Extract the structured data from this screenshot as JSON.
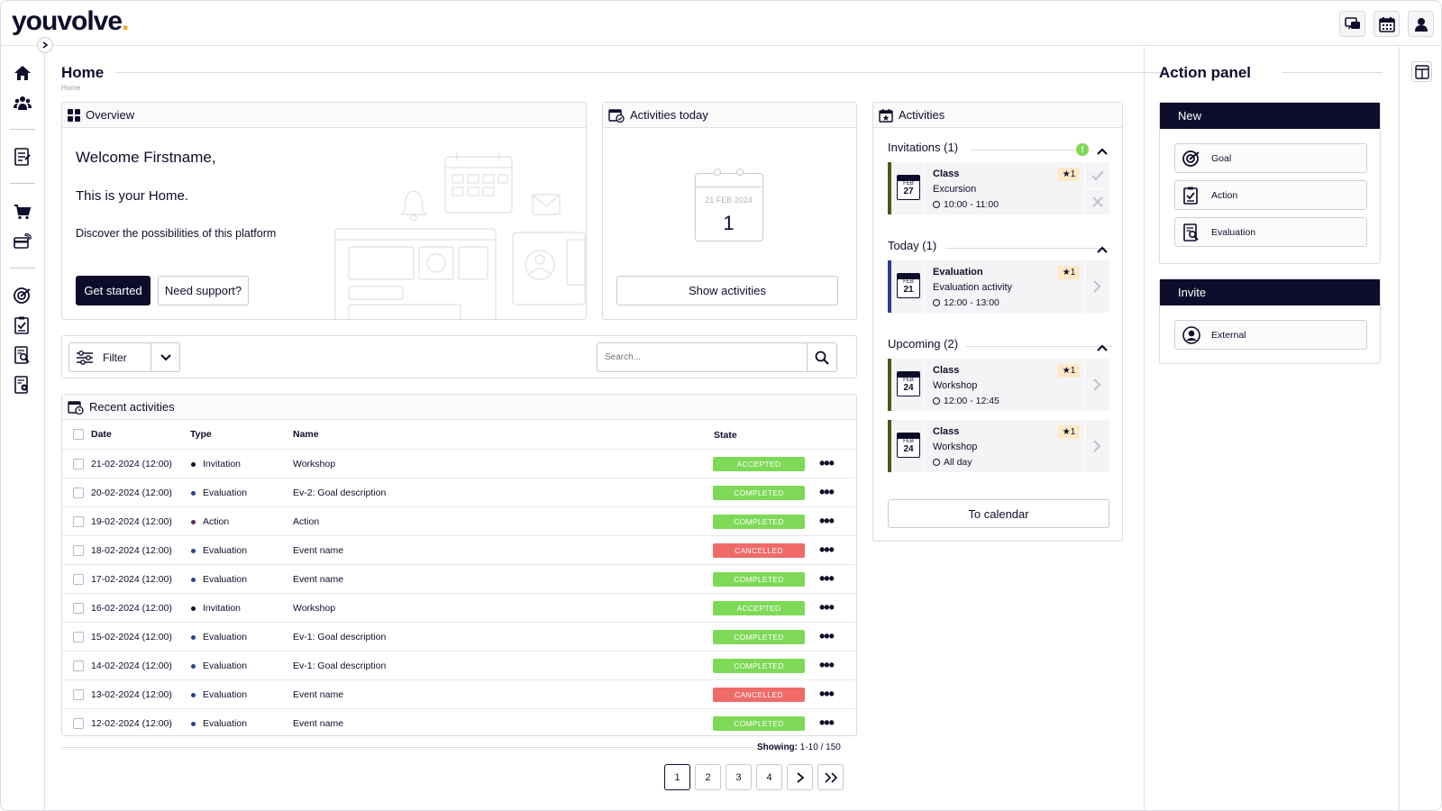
{
  "brand": {
    "logo_text": "youvolve",
    "logo_dot": ".",
    "accent": "#f5a623",
    "navy": "#0d0d2b"
  },
  "page": {
    "title": "Home",
    "breadcrumb": "Home"
  },
  "overview": {
    "title": "Overview",
    "welcome": "Welcome Firstname,",
    "subtitle": "This is your Home.",
    "description": "Discover the possibilities of this platform",
    "primary_button": "Get started",
    "secondary_button": "Need support?"
  },
  "activities_today": {
    "title": "Activities today",
    "calendar_date": "21 FEB 2024",
    "count": "1",
    "button": "Show activities"
  },
  "filter": {
    "label": "Filter",
    "search_placeholder": "Search..."
  },
  "recent": {
    "title": "Recent activities",
    "columns": {
      "date": "Date",
      "type": "Type",
      "name": "Name",
      "state": "State"
    },
    "rows": [
      {
        "date": "21-02-2024 (12:00)",
        "type": "Invitation",
        "name": "Workshop",
        "state": "ACCEPTED",
        "color": "#7ed957",
        "dot": "#0d0d2b"
      },
      {
        "date": "20-02-2024 (12:00)",
        "type": "Evaluation",
        "name": "Ev-2: Goal description",
        "state": "COMPLETED",
        "color": "#7ed957",
        "dot": "#2a3f8f"
      },
      {
        "date": "19-02-2024 (12:00)",
        "type": "Action",
        "name": "Action",
        "state": "COMPLETED",
        "color": "#7ed957",
        "dot": "#5a2a5f"
      },
      {
        "date": "18-02-2024 (12:00)",
        "type": "Evaluation",
        "name": "Event name",
        "state": "CANCELLED",
        "color": "#f06a6a",
        "dot": "#2a3f8f"
      },
      {
        "date": "17-02-2024 (12:00)",
        "type": "Evaluation",
        "name": "Event name",
        "state": "COMPLETED",
        "color": "#7ed957",
        "dot": "#2a3f8f"
      },
      {
        "date": "16-02-2024 (12:00)",
        "type": "Invitation",
        "name": "Workshop",
        "state": "ACCEPTED",
        "color": "#7ed957",
        "dot": "#0d0d2b"
      },
      {
        "date": "15-02-2024 (12:00)",
        "type": "Evaluation",
        "name": "Ev-1: Goal description",
        "state": "COMPLETED",
        "color": "#7ed957",
        "dot": "#2a3f8f"
      },
      {
        "date": "14-02-2024 (12:00)",
        "type": "Evaluation",
        "name": "Ev-1: Goal description",
        "state": "COMPLETED",
        "color": "#7ed957",
        "dot": "#2a3f8f"
      },
      {
        "date": "13-02-2024 (12:00)",
        "type": "Evaluation",
        "name": "Event name",
        "state": "CANCELLED",
        "color": "#f06a6a",
        "dot": "#2a3f8f"
      },
      {
        "date": "12-02-2024 (12:00)",
        "type": "Evaluation",
        "name": "Event name",
        "state": "COMPLETED",
        "color": "#7ed957",
        "dot": "#2a3f8f"
      }
    ],
    "showing_label": "Showing:",
    "showing_value": "1-10 / 150",
    "pages": [
      "1",
      "2",
      "3",
      "4"
    ]
  },
  "activities": {
    "title": "Activities",
    "invitations": {
      "label": "Invitations (1)",
      "items": [
        {
          "title": "Class",
          "subtitle": "Excursion",
          "time": "10:00 - 11:00",
          "month": "FEB",
          "day": "27",
          "stars": "1",
          "bar": "#4a5a1a"
        }
      ]
    },
    "today": {
      "label": "Today (1)",
      "items": [
        {
          "title": "Evaluation",
          "subtitle": "Evaluation activity",
          "time": "12:00 - 13:00",
          "month": "FEB",
          "day": "21",
          "stars": "1",
          "bar": "#2a3f8f"
        }
      ]
    },
    "upcoming": {
      "label": "Upcoming (2)",
      "items": [
        {
          "title": "Class",
          "subtitle": "Workshop",
          "time": "12:00 - 12:45",
          "month": "FEB",
          "day": "24",
          "stars": "1",
          "bar": "#4a5a1a"
        },
        {
          "title": "Class",
          "subtitle": "Workshop",
          "time": "All day",
          "month": "FEB",
          "day": "24",
          "stars": "1",
          "bar": "#4a5a1a"
        }
      ]
    },
    "button": "To calendar"
  },
  "action_panel": {
    "title": "Action panel",
    "new_label": "New",
    "new_items": [
      "Goal",
      "Action",
      "Evaluation"
    ],
    "invite_label": "Invite",
    "invite_items": [
      "External"
    ]
  }
}
